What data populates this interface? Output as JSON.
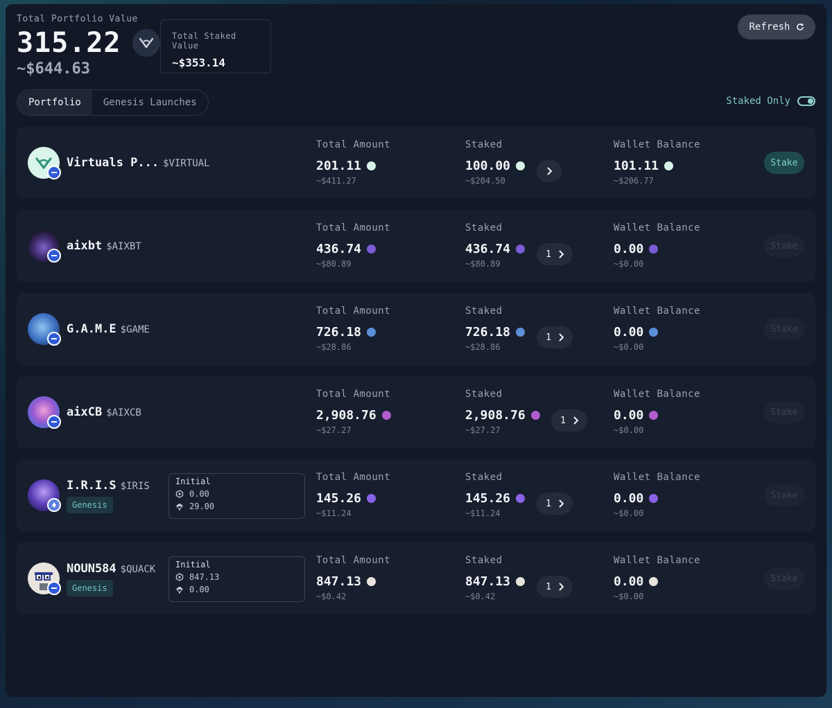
{
  "header": {
    "total_portfolio_label": "Total Portfolio Value",
    "total_portfolio_value": "315.22",
    "total_portfolio_usd": "~$644.63",
    "total_staked_label": "Total Staked Value",
    "total_staked_value": "~$353.14",
    "refresh_label": "Refresh"
  },
  "tabs": [
    {
      "label": "Portfolio",
      "active": true
    },
    {
      "label": "Genesis Launches",
      "active": false
    }
  ],
  "staked_only": {
    "label": "Staked Only",
    "on": true
  },
  "columns": {
    "total": "Total Amount",
    "staked": "Staked",
    "wallet": "Wallet Balance"
  },
  "rows": [
    {
      "name": "Virtuals P...",
      "ticker": "$VIRTUAL",
      "total": "201.11",
      "total_usd": "~$411.27",
      "staked": "100.00",
      "staked_usd": "~$204.50",
      "wallet": "101.11",
      "wallet_usd": "~$206.77",
      "count": "",
      "stake_label": "Stake",
      "stake_enabled": true,
      "token_color": "#d6f2e6"
    },
    {
      "name": "aixbt",
      "ticker": "$AIXBT",
      "total": "436.74",
      "total_usd": "~$80.89",
      "staked": "436.74",
      "staked_usd": "~$80.89",
      "wallet": "0.00",
      "wallet_usd": "~$0.00",
      "count": "1",
      "stake_label": "Stake",
      "stake_enabled": false,
      "token_color": "#7b5cd6"
    },
    {
      "name": "G.A.M.E",
      "ticker": "$GAME",
      "total": "726.18",
      "total_usd": "~$28.86",
      "staked": "726.18",
      "staked_usd": "~$28.86",
      "wallet": "0.00",
      "wallet_usd": "~$0.00",
      "count": "1",
      "stake_label": "Stake",
      "stake_enabled": false,
      "token_color": "#5b8fd8"
    },
    {
      "name": "aixCB",
      "ticker": "$AIXCB",
      "total": "2,908.76",
      "total_usd": "~$27.27",
      "staked": "2,908.76",
      "staked_usd": "~$27.27",
      "wallet": "0.00",
      "wallet_usd": "~$0.00",
      "count": "1",
      "stake_label": "Stake",
      "stake_enabled": false,
      "token_color": "#b05ccf"
    },
    {
      "name": "I.R.I.S",
      "ticker": "$IRIS",
      "genesis": "Genesis",
      "initial_label": "Initial",
      "initial_a": "0.00",
      "initial_b": "29.00",
      "total": "145.26",
      "total_usd": "~$11.24",
      "staked": "145.26",
      "staked_usd": "~$11.24",
      "wallet": "0.00",
      "wallet_usd": "~$0.00",
      "count": "1",
      "stake_label": "Stake",
      "stake_enabled": false,
      "token_color": "#8a62e8"
    },
    {
      "name": "NOUN584",
      "ticker": "$QUACK",
      "genesis": "Genesis",
      "initial_label": "Initial",
      "initial_a": "847.13",
      "initial_b": "0.00",
      "total": "847.13",
      "total_usd": "~$0.42",
      "staked": "847.13",
      "staked_usd": "~$0.42",
      "wallet": "0.00",
      "wallet_usd": "~$0.00",
      "count": "1",
      "stake_label": "Stake",
      "stake_enabled": false,
      "token_color": "#e8e2dc"
    }
  ]
}
